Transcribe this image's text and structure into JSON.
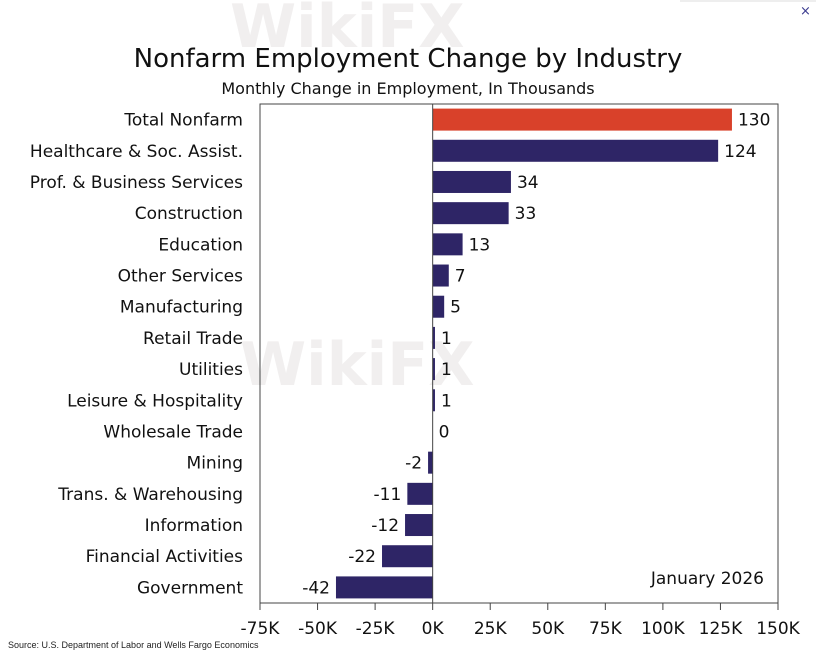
{
  "close_label": "×",
  "watermark": "WikiFX",
  "source": "Source: U.S. Department of Labor and Wells Fargo Economics",
  "chart_data": {
    "type": "bar",
    "orientation": "horizontal",
    "title": "Nonfarm Employment Change by Industry",
    "subtitle": "Monthly Change in Employment, In Thousands",
    "annotation": "January 2026",
    "categories": [
      "Total Nonfarm",
      "Healthcare & Soc. Assist.",
      "Prof. & Business Services",
      "Construction",
      "Education",
      "Other Services",
      "Manufacturing",
      "Retail Trade",
      "Utilities",
      "Leisure & Hospitality",
      "Wholesale Trade",
      "Mining",
      "Trans. & Warehousing",
      "Information",
      "Financial Activities",
      "Government"
    ],
    "values": [
      130,
      124,
      34,
      33,
      13,
      7,
      5,
      1,
      1,
      1,
      0,
      -2,
      -11,
      -12,
      -22,
      -42
    ],
    "highlight_color": "#d9412a",
    "bar_color": "#2e2566",
    "xlim": [
      -75,
      150
    ],
    "xticks": [
      -75,
      -50,
      -25,
      0,
      25,
      50,
      75,
      100,
      125,
      150
    ],
    "xtick_labels": [
      "-75K",
      "-50K",
      "-25K",
      "0K",
      "25K",
      "50K",
      "75K",
      "100K",
      "125K",
      "150K"
    ],
    "grid": false
  }
}
